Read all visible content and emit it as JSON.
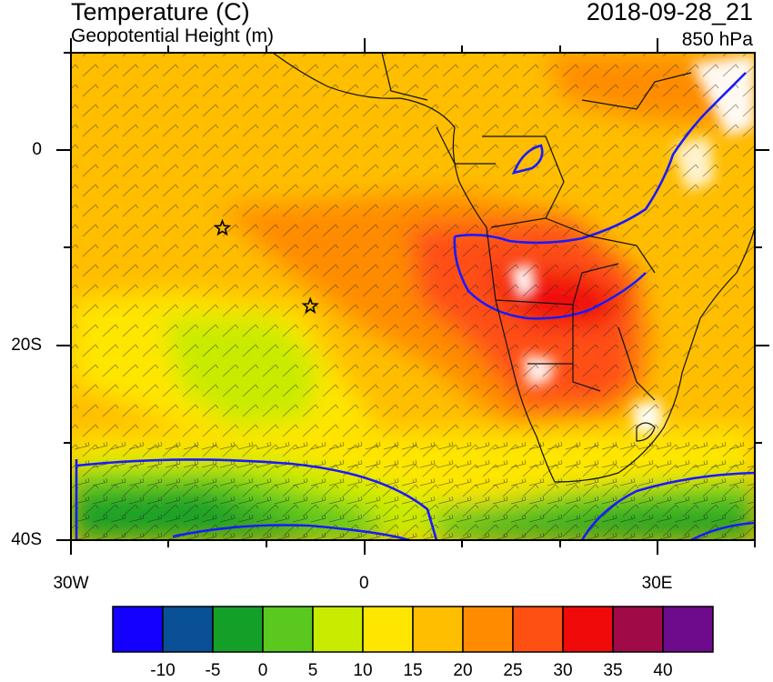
{
  "header": {
    "title": "Temperature (C)",
    "subtitle": "Geopotential Height (m)",
    "datetime": "2018-09-28_21",
    "level": "850 hPa"
  },
  "map": {
    "lon_range": [
      -30,
      40
    ],
    "lat_range": [
      -40,
      10
    ],
    "x_ticks": [
      {
        "lon": -30,
        "label": "30W"
      },
      {
        "lon": 0,
        "label": "0"
      },
      {
        "lon": 30,
        "label": "30E"
      }
    ],
    "y_ticks": [
      {
        "lat": 0,
        "label": "0"
      },
      {
        "lat": -20,
        "label": "20S"
      },
      {
        "lat": -40,
        "label": "40S"
      }
    ],
    "markers": [
      {
        "type": "star",
        "lon": -14.5,
        "lat": -8
      },
      {
        "type": "star",
        "lon": -5.5,
        "lat": -16
      }
    ],
    "contour_color": "#1a1aff"
  },
  "colorbar": {
    "labels": [
      "-10",
      "-5",
      "0",
      "5",
      "10",
      "15",
      "20",
      "25",
      "30",
      "35",
      "40"
    ],
    "colors": [
      "#1400ff",
      "#0a5096",
      "#14a028",
      "#5ac81e",
      "#c8eb00",
      "#ffe600",
      "#ffbe00",
      "#ff8c00",
      "#ff5014",
      "#f00a0a",
      "#a00a46",
      "#6e0a8c"
    ]
  }
}
